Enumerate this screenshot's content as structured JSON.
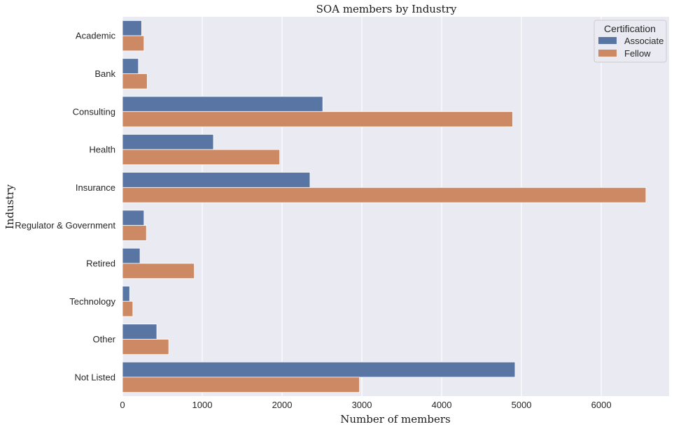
{
  "chart_data": {
    "type": "bar",
    "orientation": "horizontal",
    "title": "SOA members by Industry",
    "xlabel": "Number of members",
    "ylabel": "Industry",
    "xlim": [
      0,
      6850
    ],
    "xticks": [
      0,
      1000,
      2000,
      3000,
      4000,
      5000,
      6000
    ],
    "grid": true,
    "legend": {
      "title": "Certification",
      "position": "top-right"
    },
    "categories": [
      "Academic",
      "Bank",
      "Consulting",
      "Health",
      "Insurance",
      "Regulator & Government",
      "Retired",
      "Technology",
      "Other",
      "Not Listed"
    ],
    "series": [
      {
        "name": "Associate",
        "color": "#5875a4",
        "values": [
          240,
          200,
          2510,
          1140,
          2350,
          270,
          220,
          90,
          430,
          4920
        ]
      },
      {
        "name": "Fellow",
        "color": "#cc8963",
        "values": [
          270,
          310,
          4890,
          1970,
          6560,
          300,
          900,
          130,
          580,
          2970
        ]
      }
    ],
    "colors": {
      "plot_background": "#eaeaf2",
      "grid": "#ffffff"
    }
  }
}
